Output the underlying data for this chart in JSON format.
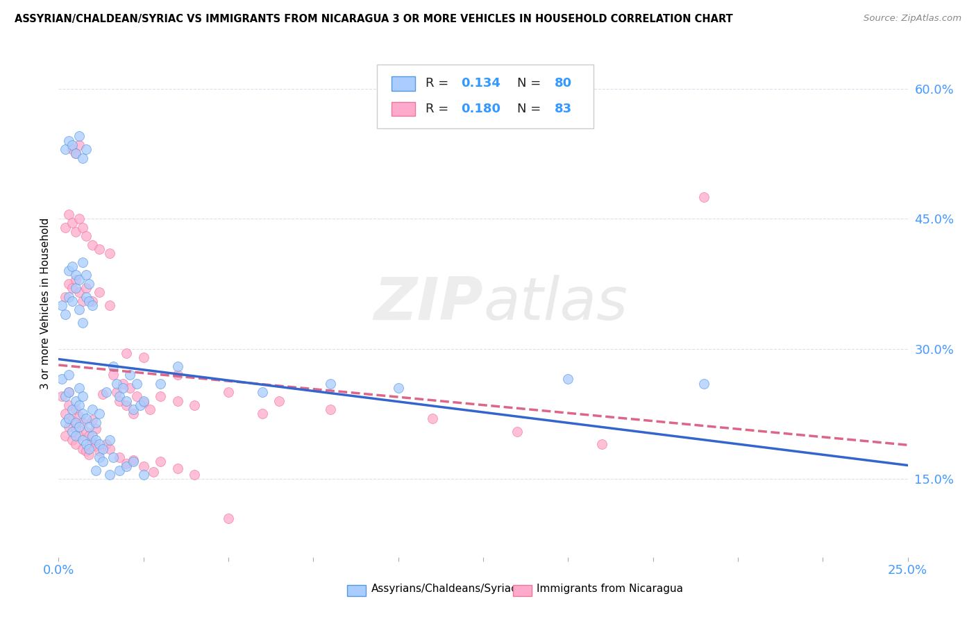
{
  "title": "ASSYRIAN/CHALDEAN/SYRIAC VS IMMIGRANTS FROM NICARAGUA 3 OR MORE VEHICLES IN HOUSEHOLD CORRELATION CHART",
  "source": "Source: ZipAtlas.com",
  "ylabel": "3 or more Vehicles in Household",
  "yticks": [
    "15.0%",
    "30.0%",
    "45.0%",
    "60.0%"
  ],
  "ytick_values": [
    0.15,
    0.3,
    0.45,
    0.6
  ],
  "xlim": [
    0.0,
    0.25
  ],
  "ylim": [
    0.06,
    0.645
  ],
  "legend_label1": "Assyrians/Chaldeans/Syriacs",
  "legend_label2": "Immigrants from Nicaragua",
  "R1": 0.134,
  "N1": 80,
  "R2": 0.18,
  "N2": 83,
  "color_blue": "#AACCFF",
  "color_pink": "#FFAACC",
  "edge_blue": "#5599DD",
  "edge_pink": "#EE7799",
  "trendline_blue": "#3366CC",
  "trendline_pink": "#DD6688",
  "background_color": "#FFFFFF",
  "grid_color": "#DDDDEE",
  "scatter_size": 100,
  "blue_x": [
    0.001,
    0.002,
    0.002,
    0.003,
    0.003,
    0.003,
    0.004,
    0.004,
    0.005,
    0.005,
    0.005,
    0.006,
    0.006,
    0.006,
    0.007,
    0.007,
    0.007,
    0.008,
    0.008,
    0.009,
    0.009,
    0.01,
    0.01,
    0.011,
    0.011,
    0.012,
    0.012,
    0.013,
    0.014,
    0.015,
    0.016,
    0.017,
    0.018,
    0.019,
    0.02,
    0.021,
    0.022,
    0.023,
    0.024,
    0.025,
    0.001,
    0.002,
    0.003,
    0.004,
    0.005,
    0.006,
    0.007,
    0.008,
    0.009,
    0.01,
    0.011,
    0.012,
    0.013,
    0.015,
    0.016,
    0.018,
    0.02,
    0.022,
    0.025,
    0.03,
    0.002,
    0.003,
    0.004,
    0.005,
    0.006,
    0.007,
    0.008,
    0.035,
    0.06,
    0.08,
    0.003,
    0.004,
    0.005,
    0.006,
    0.007,
    0.008,
    0.009,
    0.1,
    0.15,
    0.19
  ],
  "blue_y": [
    0.265,
    0.215,
    0.245,
    0.22,
    0.25,
    0.27,
    0.205,
    0.23,
    0.2,
    0.215,
    0.24,
    0.21,
    0.235,
    0.255,
    0.195,
    0.225,
    0.245,
    0.19,
    0.22,
    0.185,
    0.21,
    0.2,
    0.23,
    0.195,
    0.215,
    0.19,
    0.225,
    0.185,
    0.25,
    0.195,
    0.28,
    0.26,
    0.245,
    0.255,
    0.24,
    0.27,
    0.23,
    0.26,
    0.235,
    0.24,
    0.35,
    0.34,
    0.36,
    0.355,
    0.37,
    0.345,
    0.33,
    0.36,
    0.355,
    0.35,
    0.16,
    0.175,
    0.17,
    0.155,
    0.175,
    0.16,
    0.165,
    0.17,
    0.155,
    0.26,
    0.53,
    0.54,
    0.535,
    0.525,
    0.545,
    0.52,
    0.53,
    0.28,
    0.25,
    0.26,
    0.39,
    0.395,
    0.385,
    0.38,
    0.4,
    0.385,
    0.375,
    0.255,
    0.265,
    0.26
  ],
  "pink_x": [
    0.001,
    0.002,
    0.002,
    0.003,
    0.003,
    0.003,
    0.004,
    0.004,
    0.005,
    0.005,
    0.005,
    0.006,
    0.006,
    0.007,
    0.007,
    0.008,
    0.008,
    0.009,
    0.009,
    0.01,
    0.01,
    0.011,
    0.011,
    0.012,
    0.013,
    0.014,
    0.015,
    0.016,
    0.017,
    0.018,
    0.019,
    0.02,
    0.021,
    0.022,
    0.023,
    0.025,
    0.027,
    0.03,
    0.035,
    0.04,
    0.002,
    0.003,
    0.004,
    0.005,
    0.006,
    0.007,
    0.008,
    0.01,
    0.012,
    0.015,
    0.018,
    0.02,
    0.022,
    0.025,
    0.028,
    0.03,
    0.035,
    0.04,
    0.05,
    0.06,
    0.002,
    0.003,
    0.004,
    0.005,
    0.006,
    0.007,
    0.008,
    0.01,
    0.012,
    0.015,
    0.02,
    0.025,
    0.035,
    0.05,
    0.065,
    0.08,
    0.11,
    0.135,
    0.16,
    0.19,
    0.004,
    0.005,
    0.006
  ],
  "pink_y": [
    0.245,
    0.2,
    0.225,
    0.21,
    0.235,
    0.25,
    0.195,
    0.218,
    0.19,
    0.208,
    0.23,
    0.2,
    0.222,
    0.185,
    0.215,
    0.182,
    0.205,
    0.178,
    0.2,
    0.192,
    0.218,
    0.188,
    0.208,
    0.182,
    0.248,
    0.19,
    0.185,
    0.27,
    0.25,
    0.24,
    0.26,
    0.235,
    0.255,
    0.225,
    0.245,
    0.238,
    0.23,
    0.245,
    0.24,
    0.235,
    0.36,
    0.375,
    0.37,
    0.38,
    0.365,
    0.355,
    0.37,
    0.355,
    0.365,
    0.35,
    0.175,
    0.168,
    0.172,
    0.165,
    0.158,
    0.17,
    0.162,
    0.155,
    0.105,
    0.225,
    0.44,
    0.455,
    0.445,
    0.435,
    0.45,
    0.44,
    0.43,
    0.42,
    0.415,
    0.41,
    0.295,
    0.29,
    0.27,
    0.25,
    0.24,
    0.23,
    0.22,
    0.205,
    0.19,
    0.475,
    0.53,
    0.525,
    0.535
  ]
}
